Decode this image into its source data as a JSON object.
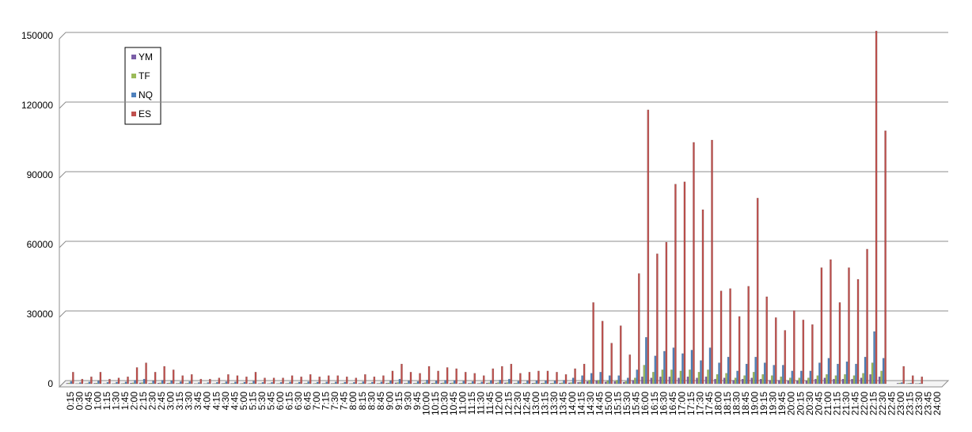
{
  "chart_data": {
    "type": "bar",
    "categories": [
      "0:15",
      "0:30",
      "0:45",
      "1:00",
      "1:15",
      "1:30",
      "1:45",
      "2:00",
      "2:15",
      "2:30",
      "2:45",
      "3:00",
      "3:15",
      "3:30",
      "3:45",
      "4:00",
      "4:15",
      "4:30",
      "4:45",
      "5:00",
      "5:15",
      "5:30",
      "5:45",
      "6:00",
      "6:15",
      "6:30",
      "6:45",
      "7:00",
      "7:15",
      "7:30",
      "7:45",
      "8:00",
      "8:15",
      "8:30",
      "8:45",
      "9:00",
      "9:15",
      "9:30",
      "9:45",
      "10:00",
      "10:15",
      "10:30",
      "10:45",
      "11:00",
      "11:15",
      "11:30",
      "11:45",
      "12:00",
      "12:15",
      "12:30",
      "12:45",
      "13:00",
      "13:15",
      "13:30",
      "13:45",
      "14:00",
      "14:15",
      "14:30",
      "14:45",
      "15:00",
      "15:15",
      "15:30",
      "15:45",
      "16:00",
      "16:15",
      "16:30",
      "16:45",
      "17:00",
      "17:15",
      "17:30",
      "17:45",
      "18:00",
      "18:15",
      "18:30",
      "18:45",
      "19:00",
      "19:15",
      "19:30",
      "19:45",
      "20:00",
      "20:15",
      "20:30",
      "20:45",
      "21:00",
      "21:15",
      "21:30",
      "21:45",
      "22:00",
      "22:15",
      "22:30",
      "22:45",
      "23:00",
      "23:15",
      "23:30",
      "23:45",
      "24:00"
    ],
    "series": [
      {
        "name": "YM",
        "color": "#7b5ea7",
        "values": [
          200,
          100,
          100,
          200,
          100,
          100,
          100,
          300,
          400,
          200,
          300,
          250,
          150,
          150,
          100,
          100,
          100,
          150,
          150,
          100,
          200,
          100,
          100,
          100,
          150,
          100,
          150,
          100,
          150,
          150,
          100,
          100,
          150,
          100,
          150,
          250,
          400,
          200,
          200,
          300,
          250,
          300,
          300,
          200,
          200,
          150,
          300,
          300,
          400,
          200,
          200,
          250,
          250,
          200,
          300,
          400,
          600,
          1000,
          1200,
          800,
          1000,
          700,
          1500,
          3000,
          2500,
          3000,
          3000,
          2500,
          3000,
          2500,
          3000,
          2000,
          2500,
          1500,
          2000,
          2500,
          2000,
          1500,
          1500,
          1200,
          1200,
          1200,
          2000,
          2500,
          2000,
          2000,
          2000,
          2500,
          4000,
          3000,
          0,
          200,
          100,
          100,
          0,
          0
        ]
      },
      {
        "name": "TF",
        "color": "#9bbb59",
        "values": [
          300,
          100,
          200,
          300,
          100,
          150,
          200,
          400,
          500,
          300,
          400,
          350,
          200,
          250,
          100,
          100,
          150,
          250,
          200,
          200,
          300,
          150,
          150,
          150,
          200,
          200,
          250,
          200,
          200,
          200,
          200,
          150,
          250,
          200,
          200,
          350,
          500,
          300,
          300,
          450,
          350,
          400,
          400,
          300,
          300,
          200,
          400,
          450,
          500,
          300,
          300,
          350,
          350,
          300,
          400,
          500,
          700,
          1500,
          1500,
          1200,
          1500,
          1000,
          2500,
          8000,
          5000,
          6000,
          6000,
          5500,
          6000,
          5000,
          6000,
          4000,
          4500,
          2500,
          3500,
          5000,
          4000,
          3500,
          3000,
          2500,
          2500,
          2500,
          3500,
          4000,
          3500,
          4000,
          3500,
          4500,
          9000,
          5500,
          0,
          300,
          200,
          100,
          0,
          0
        ]
      },
      {
        "name": "NQ",
        "color": "#4f81bd",
        "values": [
          1000,
          500,
          800,
          1200,
          600,
          700,
          800,
          1500,
          2000,
          1200,
          1500,
          1300,
          900,
          1000,
          500,
          500,
          600,
          900,
          800,
          700,
          1100,
          600,
          600,
          600,
          800,
          700,
          900,
          700,
          800,
          800,
          700,
          600,
          900,
          700,
          800,
          1200,
          2000,
          1200,
          1000,
          1600,
          1200,
          1500,
          1400,
          1100,
          1000,
          800,
          1400,
          1600,
          2000,
          1100,
          1200,
          1300,
          1300,
          1200,
          1500,
          2500,
          3500,
          4500,
          5000,
          3500,
          3500,
          2500,
          6000,
          20000,
          12000,
          14000,
          15500,
          13000,
          14500,
          10000,
          15500,
          9000,
          11500,
          5500,
          8500,
          11500,
          9000,
          8000,
          8000,
          5500,
          5500,
          5500,
          9000,
          11000,
          8500,
          9500,
          8500,
          11500,
          22500,
          11000,
          0,
          500,
          300,
          200,
          0,
          0
        ]
      },
      {
        "name": "ES",
        "color": "#c0504d",
        "values": [
          5000,
          2000,
          3000,
          5000,
          2000,
          2500,
          3000,
          7000,
          9000,
          5000,
          7500,
          6000,
          3500,
          4000,
          2000,
          2000,
          2500,
          4000,
          3500,
          3000,
          5000,
          2500,
          2500,
          2500,
          3500,
          3000,
          4000,
          3000,
          3500,
          3500,
          3000,
          2500,
          4000,
          3000,
          3500,
          5500,
          8500,
          5000,
          4500,
          7500,
          5500,
          7000,
          6500,
          5000,
          4500,
          3500,
          6500,
          7500,
          8500,
          4500,
          5000,
          5500,
          5500,
          5000,
          4000,
          6500,
          8500,
          35000,
          27000,
          17500,
          25000,
          12500,
          47500,
          118000,
          56000,
          61000,
          86000,
          87000,
          104000,
          75000,
          105000,
          40000,
          41000,
          29000,
          42000,
          80000,
          37500,
          28500,
          23000,
          31500,
          27500,
          25500,
          50000,
          53500,
          35000,
          50000,
          45000,
          58000,
          152000,
          109000,
          0,
          7500,
          3500,
          3000,
          0,
          0
        ]
      }
    ],
    "ylim": [
      0,
      150000
    ],
    "yticks": [
      0,
      30000,
      60000,
      90000,
      120000,
      150000
    ],
    "grid": true,
    "legend": "upper-left"
  }
}
